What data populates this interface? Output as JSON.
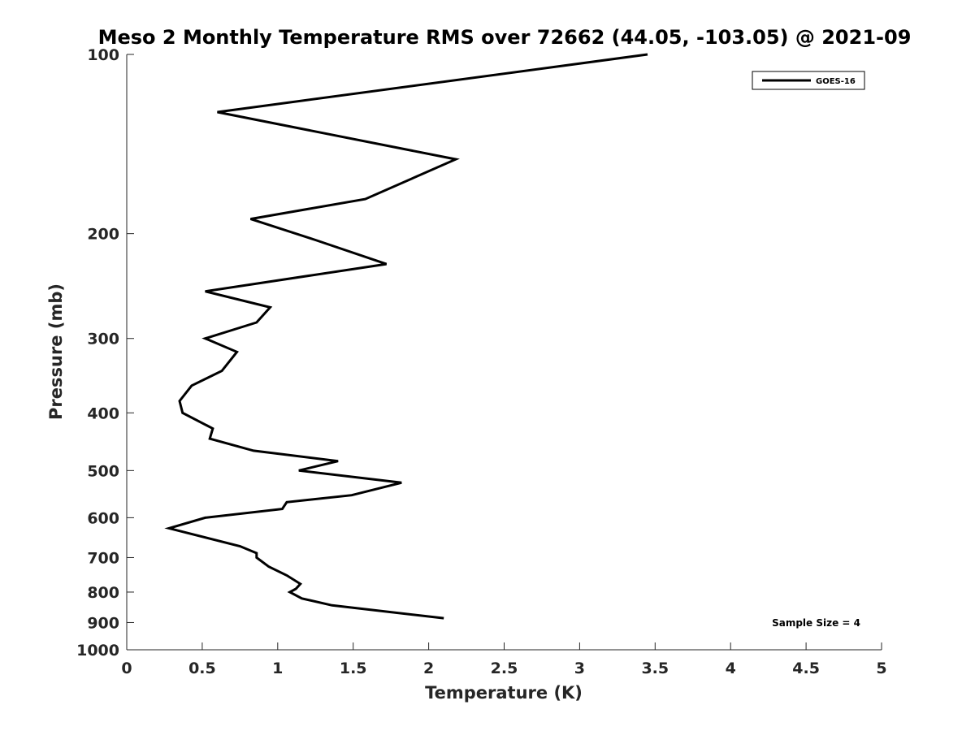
{
  "chart_data": {
    "type": "line",
    "title": "Meso 2 Monthly Temperature RMS over 72662 (44.05, -103.05) @ 2021-09",
    "xlabel": "Temperature (K)",
    "ylabel": "Pressure (mb)",
    "xlim": [
      0,
      5
    ],
    "ylim": [
      100,
      1000
    ],
    "y_scale": "log",
    "y_reversed": true,
    "x_ticks": [
      "0",
      "0.5",
      "1",
      "1.5",
      "2",
      "2.5",
      "3",
      "3.5",
      "4",
      "4.5",
      "5"
    ],
    "y_ticks": [
      "100",
      "200",
      "300",
      "400",
      "500",
      "600",
      "700",
      "800",
      "900",
      "1000"
    ],
    "grid": false,
    "legend_position": "top-right",
    "annotation": "Sample Size = 4",
    "series": [
      {
        "name": "GOES-16",
        "color": "#000000",
        "points": [
          {
            "t": 3.45,
            "p": 100
          },
          {
            "t": 0.6,
            "p": 125
          },
          {
            "t": 2.18,
            "p": 150
          },
          {
            "t": 1.58,
            "p": 175
          },
          {
            "t": 0.82,
            "p": 189
          },
          {
            "t": 1.25,
            "p": 205
          },
          {
            "t": 1.72,
            "p": 225
          },
          {
            "t": 0.52,
            "p": 250
          },
          {
            "t": 0.95,
            "p": 266
          },
          {
            "t": 0.86,
            "p": 282
          },
          {
            "t": 0.52,
            "p": 300
          },
          {
            "t": 0.73,
            "p": 316
          },
          {
            "t": 0.63,
            "p": 340
          },
          {
            "t": 0.43,
            "p": 360
          },
          {
            "t": 0.35,
            "p": 382
          },
          {
            "t": 0.37,
            "p": 400
          },
          {
            "t": 0.57,
            "p": 425
          },
          {
            "t": 0.55,
            "p": 442
          },
          {
            "t": 0.84,
            "p": 463
          },
          {
            "t": 1.4,
            "p": 482
          },
          {
            "t": 1.14,
            "p": 500
          },
          {
            "t": 1.82,
            "p": 524
          },
          {
            "t": 1.49,
            "p": 550
          },
          {
            "t": 1.06,
            "p": 565
          },
          {
            "t": 1.03,
            "p": 580
          },
          {
            "t": 0.52,
            "p": 600
          },
          {
            "t": 0.28,
            "p": 625
          },
          {
            "t": 0.75,
            "p": 670
          },
          {
            "t": 0.86,
            "p": 688
          },
          {
            "t": 0.86,
            "p": 700
          },
          {
            "t": 0.94,
            "p": 725
          },
          {
            "t": 1.06,
            "p": 750
          },
          {
            "t": 1.15,
            "p": 775
          },
          {
            "t": 1.12,
            "p": 790
          },
          {
            "t": 1.08,
            "p": 800
          },
          {
            "t": 1.16,
            "p": 820
          },
          {
            "t": 1.36,
            "p": 842
          },
          {
            "t": 2.1,
            "p": 885
          }
        ]
      }
    ]
  }
}
